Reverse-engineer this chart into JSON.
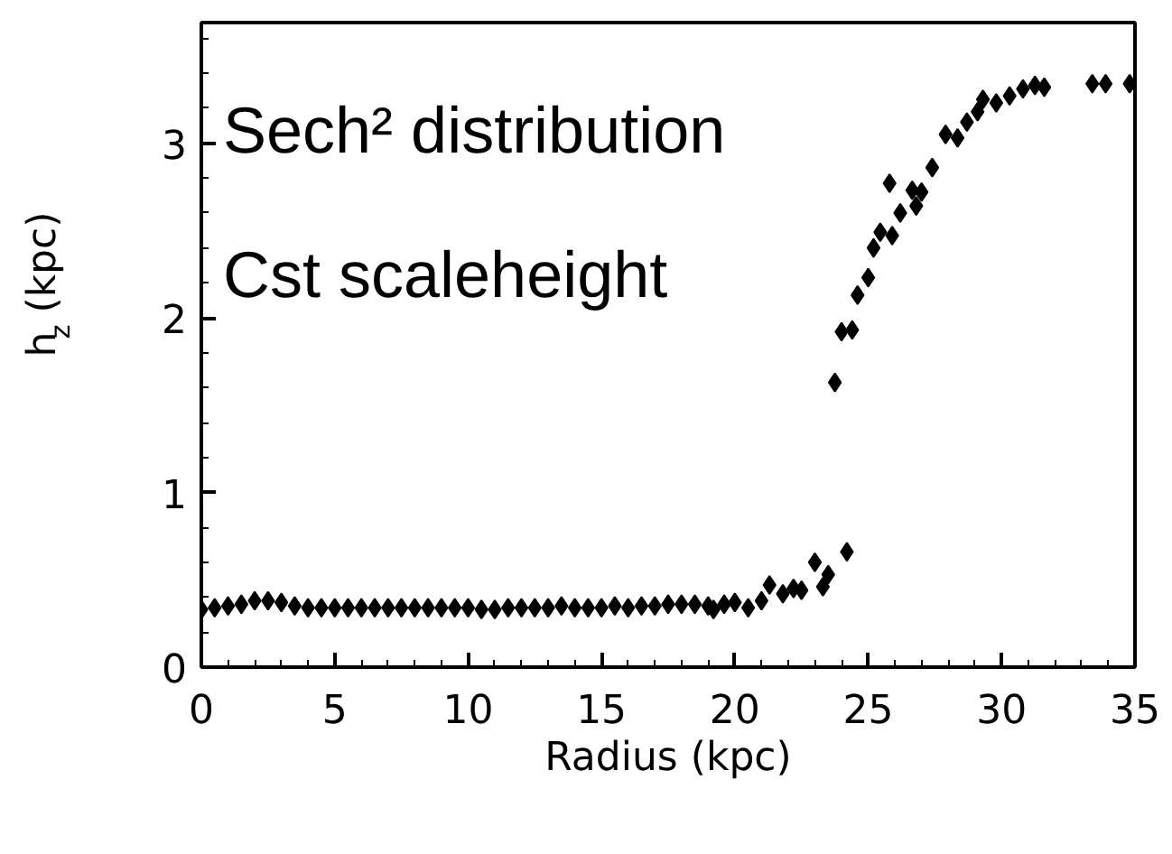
{
  "chart_data": {
    "type": "scatter",
    "xlabel": "Radius (kpc)",
    "ylabel": "h$_{z}$ (kpc)",
    "annotations": [
      "Sech² distribution",
      "Cst scaleheight"
    ],
    "marker": "diamond",
    "grid": false,
    "xlim": [
      0,
      35
    ],
    "xticks": [
      0,
      5,
      10,
      15,
      20,
      25,
      30,
      35
    ],
    "ylim": [
      0,
      3.69
    ],
    "yticks": [
      0,
      1,
      2,
      3
    ],
    "series": [
      {
        "color": "#000000",
        "x": [
          0,
          0.5,
          1,
          1.5,
          2,
          2.5,
          3,
          3.5,
          4,
          4.5,
          5,
          5.5,
          6,
          6.5,
          7,
          7.5,
          8,
          8.5,
          9,
          9.5,
          10,
          10.5,
          11,
          11.5,
          12,
          12.5,
          13,
          13.5,
          14,
          14.5,
          15,
          15.5,
          16,
          16.5,
          17,
          17.5,
          18,
          18.5,
          19,
          19.2,
          19.6,
          20,
          20.5,
          21,
          21.3,
          21.8,
          22.2,
          22.5,
          23,
          23.3,
          23.5,
          23.75,
          24,
          24.2,
          24.4,
          24.6,
          25,
          25.2,
          25.45,
          25.8,
          25.9,
          26.2,
          26.65,
          26.8,
          27,
          27.4,
          27.9,
          28.35,
          28.7,
          29.1,
          29.3,
          29.8,
          30.3,
          30.8,
          31.25,
          31.6,
          33.4,
          33.9,
          34.8
        ],
        "values": [
          0.33,
          0.34,
          0.35,
          0.36,
          0.38,
          0.38,
          0.37,
          0.35,
          0.34,
          0.34,
          0.34,
          0.34,
          0.34,
          0.34,
          0.34,
          0.34,
          0.34,
          0.34,
          0.34,
          0.34,
          0.34,
          0.33,
          0.33,
          0.34,
          0.34,
          0.34,
          0.34,
          0.35,
          0.34,
          0.34,
          0.34,
          0.35,
          0.34,
          0.35,
          0.35,
          0.36,
          0.36,
          0.36,
          0.35,
          0.33,
          0.36,
          0.37,
          0.34,
          0.38,
          0.47,
          0.42,
          0.45,
          0.44,
          0.6,
          0.46,
          0.53,
          1.63,
          1.92,
          0.66,
          1.93,
          2.13,
          2.23,
          2.4,
          2.49,
          2.77,
          2.47,
          2.6,
          2.73,
          2.64,
          2.72,
          2.86,
          3.05,
          3.03,
          3.12,
          3.18,
          3.25,
          3.23,
          3.27,
          3.31,
          3.33,
          3.32,
          3.34,
          3.34,
          3.34
        ]
      }
    ]
  }
}
